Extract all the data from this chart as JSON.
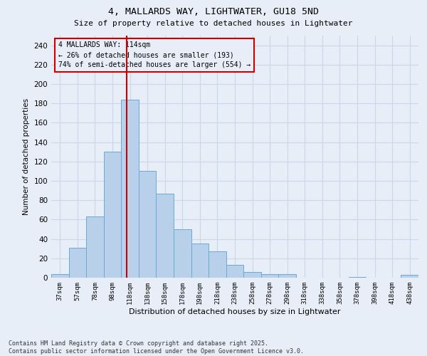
{
  "title1": "4, MALLARDS WAY, LIGHTWATER, GU18 5ND",
  "title2": "Size of property relative to detached houses in Lightwater",
  "xlabel": "Distribution of detached houses by size in Lightwater",
  "ylabel": "Number of detached properties",
  "footer1": "Contains HM Land Registry data © Crown copyright and database right 2025.",
  "footer2": "Contains public sector information licensed under the Open Government Licence v3.0.",
  "property_label": "4 MALLARDS WAY: 114sqm",
  "annotation_line1": "← 26% of detached houses are smaller (193)",
  "annotation_line2": "74% of semi-detached houses are larger (554) →",
  "bar_labels": [
    "37sqm",
    "57sqm",
    "78sqm",
    "98sqm",
    "118sqm",
    "138sqm",
    "158sqm",
    "178sqm",
    "198sqm",
    "218sqm",
    "238sqm",
    "258sqm",
    "278sqm",
    "298sqm",
    "318sqm",
    "338sqm",
    "358sqm",
    "378sqm",
    "398sqm",
    "418sqm",
    "438sqm"
  ],
  "bar_values": [
    4,
    31,
    63,
    130,
    184,
    110,
    87,
    50,
    35,
    27,
    13,
    6,
    4,
    4,
    0,
    0,
    0,
    1,
    0,
    0,
    3
  ],
  "bar_color": "#b8d0ea",
  "bar_edge_color": "#6aaad4",
  "grid_color": "#c8d8e8",
  "background_color": "#e8eef8",
  "vline_color": "#cc0000",
  "annotation_box_color": "#cc0000",
  "ylim": [
    0,
    250
  ],
  "yticks": [
    0,
    20,
    40,
    60,
    80,
    100,
    120,
    140,
    160,
    180,
    200,
    220,
    240
  ]
}
